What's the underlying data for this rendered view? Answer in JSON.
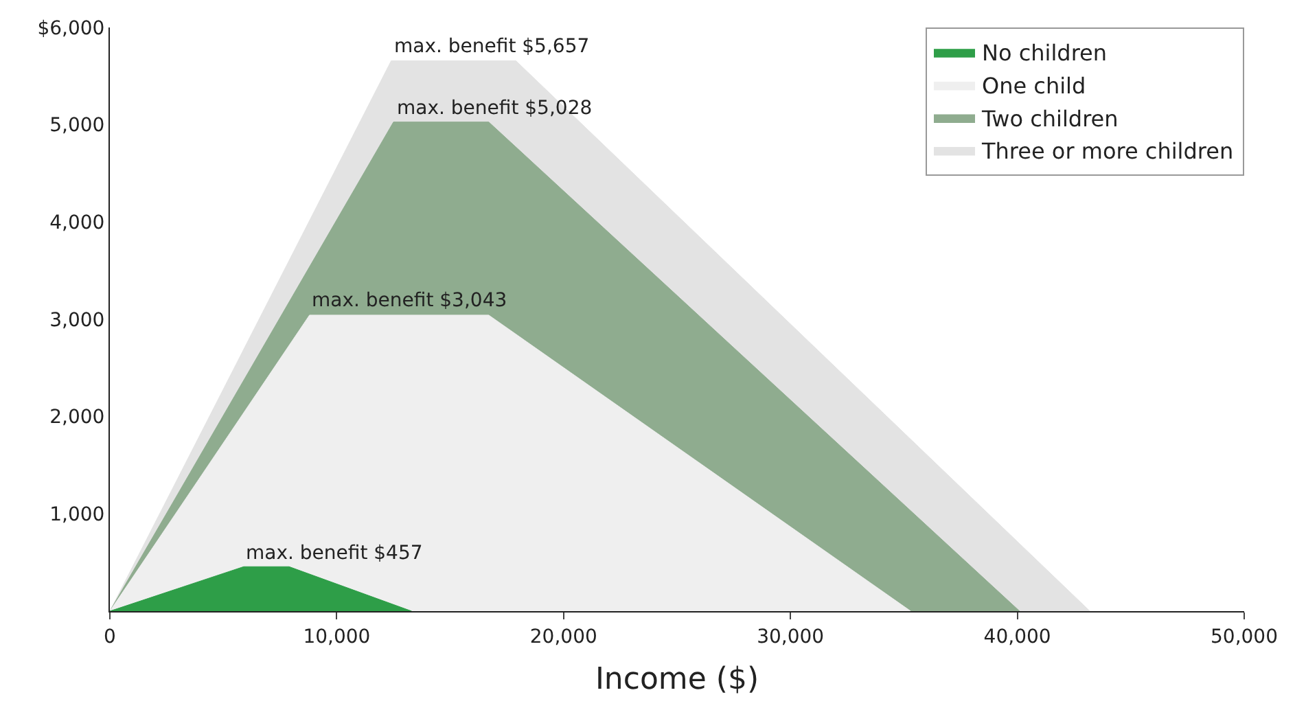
{
  "chart_data": {
    "type": "area",
    "xlabel": "Income ($)",
    "xlim": [
      0,
      50000
    ],
    "ylim": [
      0,
      6000
    ],
    "xticks": [
      0,
      {
        "value": 10000,
        "label": "10,000"
      },
      {
        "value": 20000,
        "label": "20,000"
      },
      {
        "value": 30000,
        "label": "30,000"
      },
      {
        "value": 40000,
        "label": "40,000"
      },
      {
        "value": 50000,
        "label": "50,000"
      }
    ],
    "yticks": [
      {
        "value": 1000,
        "label": "1,000"
      },
      {
        "value": 2000,
        "label": "2,000"
      },
      {
        "value": 3000,
        "label": "3,000"
      },
      {
        "value": 4000,
        "label": "4,000"
      },
      {
        "value": 5000,
        "label": "5,000"
      },
      {
        "value": 6000,
        "label": "$6,000"
      }
    ],
    "series": [
      {
        "name": "No children",
        "color": "#2e9e48",
        "x": [
          0,
          5900,
          7900,
          13300
        ],
        "values": [
          0,
          457,
          457,
          0
        ]
      },
      {
        "name": "One child",
        "color": "#efefef",
        "x": [
          0,
          8800,
          16700,
          35300
        ],
        "values": [
          0,
          3043,
          3043,
          0
        ]
      },
      {
        "name": "Two children",
        "color": "#8fac8f",
        "x": [
          0,
          12500,
          16700,
          40100
        ],
        "values": [
          0,
          5028,
          5028,
          0
        ]
      },
      {
        "name": "Three or more children",
        "color": "#e3e3e3",
        "x": [
          0,
          12400,
          17900,
          43200
        ],
        "values": [
          0,
          5657,
          5657,
          0
        ]
      }
    ],
    "annotations": [
      {
        "text": "max. benefit $5,657",
        "x": 12400,
        "y": 5657
      },
      {
        "text": "max. benefit $5,028",
        "x": 12500,
        "y": 5028
      },
      {
        "text": "max. benefit $3,043",
        "x": 8800,
        "y": 3043
      },
      {
        "text": "max. benefit $457",
        "x": 5900,
        "y": 457
      }
    ],
    "legend": "top right"
  }
}
